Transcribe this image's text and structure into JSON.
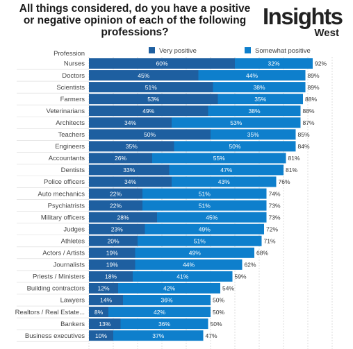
{
  "title_lines": [
    "All things considered, do you have a positive",
    "or negative opinion of each of the following",
    "professions?"
  ],
  "logo": {
    "main": "Insights",
    "sub": "West"
  },
  "colors": {
    "very_positive": "#1e5fa0",
    "somewhat_positive": "#0e7fcc",
    "grid": "#c8c8c8"
  },
  "chart_data": {
    "type": "bar",
    "orientation": "horizontal",
    "stacked": true,
    "category_header": "Profession",
    "categories": [
      "Nurses",
      "Doctors",
      "Scientists",
      "Farmers",
      "Veterinarians",
      "Architects",
      "Teachers",
      "Engineers",
      "Accountants",
      "Dentists",
      "Police officers",
      "Auto mechanics",
      "Psychiatrists",
      "Military officers",
      "Judges",
      "Athletes",
      "Actors / Artists",
      "Journalists",
      "Priests / Ministers",
      "Building contractors",
      "Lawyers",
      "Realtors / Real Estate...",
      "Bankers",
      "Business executives"
    ],
    "series": [
      {
        "name": "Very positive",
        "values": [
          60,
          45,
          51,
          53,
          49,
          34,
          50,
          35,
          26,
          33,
          34,
          22,
          22,
          28,
          23,
          20,
          19,
          19,
          18,
          12,
          14,
          8,
          13,
          10
        ]
      },
      {
        "name": "Somewhat positive",
        "values": [
          32,
          44,
          38,
          35,
          38,
          53,
          35,
          50,
          55,
          47,
          43,
          51,
          51,
          45,
          49,
          51,
          49,
          44,
          41,
          42,
          36,
          42,
          36,
          37
        ]
      }
    ],
    "totals": [
      92,
      89,
      89,
      88,
      88,
      87,
      85,
      84,
      81,
      81,
      76,
      74,
      73,
      73,
      72,
      71,
      68,
      62,
      59,
      54,
      50,
      50,
      50,
      47
    ],
    "value_suffix": "%",
    "xlim": [
      0,
      100
    ],
    "legend_position": "top"
  }
}
